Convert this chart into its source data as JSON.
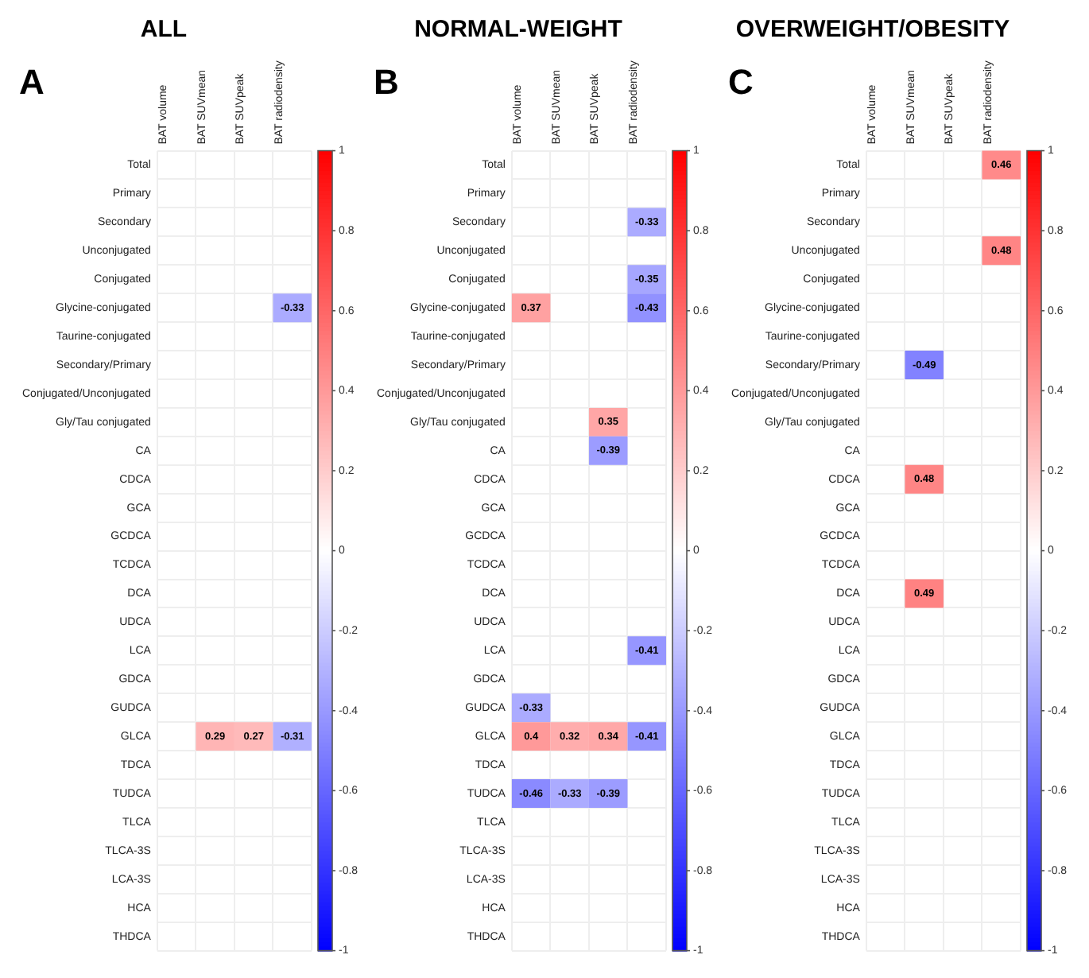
{
  "chart_data": [
    {
      "type": "heatmap",
      "title": "ALL",
      "annotations": [
        "A"
      ],
      "categories": [
        "BAT volume",
        "BAT SUVmean",
        "BAT SUVpeak",
        "BAT radiodensity"
      ],
      "y_categories": [
        "Total",
        "Primary",
        "Secondary",
        "Unconjugated",
        "Conjugated",
        "Glycine-conjugated",
        "Taurine-conjugated",
        "Secondary/Primary",
        "Conjugated/Unconjugated",
        "Gly/Tau conjugated",
        "CA",
        "CDCA",
        "GCA",
        "GCDCA",
        "TCDCA",
        "DCA",
        "UDCA",
        "LCA",
        "GDCA",
        "GUDCA",
        "GLCA",
        "TDCA",
        "TUDCA",
        "TLCA",
        "TLCA-3S",
        "LCA-3S",
        "HCA",
        "THDCA"
      ],
      "cells": [
        [
          null,
          null,
          null,
          null
        ],
        [
          null,
          null,
          null,
          null
        ],
        [
          null,
          null,
          null,
          null
        ],
        [
          null,
          null,
          null,
          null
        ],
        [
          null,
          null,
          null,
          null
        ],
        [
          null,
          null,
          null,
          -0.33
        ],
        [
          null,
          null,
          null,
          null
        ],
        [
          null,
          null,
          null,
          null
        ],
        [
          null,
          null,
          null,
          null
        ],
        [
          null,
          null,
          null,
          null
        ],
        [
          null,
          null,
          null,
          null
        ],
        [
          null,
          null,
          null,
          null
        ],
        [
          null,
          null,
          null,
          null
        ],
        [
          null,
          null,
          null,
          null
        ],
        [
          null,
          null,
          null,
          null
        ],
        [
          null,
          null,
          null,
          null
        ],
        [
          null,
          null,
          null,
          null
        ],
        [
          null,
          null,
          null,
          null
        ],
        [
          null,
          null,
          null,
          null
        ],
        [
          null,
          null,
          null,
          null
        ],
        [
          null,
          0.29,
          0.27,
          -0.31
        ],
        [
          null,
          null,
          null,
          null
        ],
        [
          null,
          null,
          null,
          null
        ],
        [
          null,
          null,
          null,
          null
        ],
        [
          null,
          null,
          null,
          null
        ],
        [
          null,
          null,
          null,
          null
        ],
        [
          null,
          null,
          null,
          null
        ],
        [
          null,
          null,
          null,
          null
        ]
      ],
      "clim": [
        -1,
        1
      ],
      "cticks": [
        -1,
        -0.8,
        -0.6,
        -0.4,
        -0.2,
        0,
        0.2,
        0.4,
        0.6,
        0.8,
        1
      ],
      "data_labels": true,
      "grid": true
    },
    {
      "type": "heatmap",
      "title": "NORMAL-WEIGHT",
      "annotations": [
        "B"
      ],
      "categories": [
        "BAT volume",
        "BAT SUVmean",
        "BAT SUVpeak",
        "BAT radiodensity"
      ],
      "y_categories": [
        "Total",
        "Primary",
        "Secondary",
        "Unconjugated",
        "Conjugated",
        "Glycine-conjugated",
        "Taurine-conjugated",
        "Secondary/Primary",
        "Conjugated/Unconjugated",
        "Gly/Tau conjugated",
        "CA",
        "CDCA",
        "GCA",
        "GCDCA",
        "TCDCA",
        "DCA",
        "UDCA",
        "LCA",
        "GDCA",
        "GUDCA",
        "GLCA",
        "TDCA",
        "TUDCA",
        "TLCA",
        "TLCA-3S",
        "LCA-3S",
        "HCA",
        "THDCA"
      ],
      "cells": [
        [
          null,
          null,
          null,
          null
        ],
        [
          null,
          null,
          null,
          null
        ],
        [
          null,
          null,
          null,
          -0.33
        ],
        [
          null,
          null,
          null,
          null
        ],
        [
          null,
          null,
          null,
          -0.35
        ],
        [
          0.37,
          null,
          null,
          -0.43
        ],
        [
          null,
          null,
          null,
          null
        ],
        [
          null,
          null,
          null,
          null
        ],
        [
          null,
          null,
          null,
          null
        ],
        [
          null,
          null,
          0.35,
          null
        ],
        [
          null,
          null,
          -0.39,
          null
        ],
        [
          null,
          null,
          null,
          null
        ],
        [
          null,
          null,
          null,
          null
        ],
        [
          null,
          null,
          null,
          null
        ],
        [
          null,
          null,
          null,
          null
        ],
        [
          null,
          null,
          null,
          null
        ],
        [
          null,
          null,
          null,
          null
        ],
        [
          null,
          null,
          null,
          -0.41
        ],
        [
          null,
          null,
          null,
          null
        ],
        [
          -0.33,
          null,
          null,
          null
        ],
        [
          0.4,
          0.32,
          0.34,
          -0.41
        ],
        [
          null,
          null,
          null,
          null
        ],
        [
          -0.46,
          -0.33,
          -0.39,
          null
        ],
        [
          null,
          null,
          null,
          null
        ],
        [
          null,
          null,
          null,
          null
        ],
        [
          null,
          null,
          null,
          null
        ],
        [
          null,
          null,
          null,
          null
        ],
        [
          null,
          null,
          null,
          null
        ]
      ],
      "clim": [
        -1,
        1
      ],
      "cticks": [
        -1,
        -0.8,
        -0.6,
        -0.4,
        -0.2,
        0,
        0.2,
        0.4,
        0.6,
        0.8,
        1
      ],
      "data_labels": true,
      "grid": true
    },
    {
      "type": "heatmap",
      "title": "OVERWEIGHT/OBESITY",
      "annotations": [
        "C"
      ],
      "categories": [
        "BAT volume",
        "BAT SUVmean",
        "BAT SUVpeak",
        "BAT radiodensity"
      ],
      "y_categories": [
        "Total",
        "Primary",
        "Secondary",
        "Unconjugated",
        "Conjugated",
        "Glycine-conjugated",
        "Taurine-conjugated",
        "Secondary/Primary",
        "Conjugated/Unconjugated",
        "Gly/Tau conjugated",
        "CA",
        "CDCA",
        "GCA",
        "GCDCA",
        "TCDCA",
        "DCA",
        "UDCA",
        "LCA",
        "GDCA",
        "GUDCA",
        "GLCA",
        "TDCA",
        "TUDCA",
        "TLCA",
        "TLCA-3S",
        "LCA-3S",
        "HCA",
        "THDCA"
      ],
      "cells": [
        [
          null,
          null,
          null,
          0.46
        ],
        [
          null,
          null,
          null,
          null
        ],
        [
          null,
          null,
          null,
          null
        ],
        [
          null,
          null,
          null,
          0.48
        ],
        [
          null,
          null,
          null,
          null
        ],
        [
          null,
          null,
          null,
          null
        ],
        [
          null,
          null,
          null,
          null
        ],
        [
          null,
          -0.49,
          null,
          null
        ],
        [
          null,
          null,
          null,
          null
        ],
        [
          null,
          null,
          null,
          null
        ],
        [
          null,
          null,
          null,
          null
        ],
        [
          null,
          0.48,
          null,
          null
        ],
        [
          null,
          null,
          null,
          null
        ],
        [
          null,
          null,
          null,
          null
        ],
        [
          null,
          null,
          null,
          null
        ],
        [
          null,
          0.49,
          null,
          null
        ],
        [
          null,
          null,
          null,
          null
        ],
        [
          null,
          null,
          null,
          null
        ],
        [
          null,
          null,
          null,
          null
        ],
        [
          null,
          null,
          null,
          null
        ],
        [
          null,
          null,
          null,
          null
        ],
        [
          null,
          null,
          null,
          null
        ],
        [
          null,
          null,
          null,
          null
        ],
        [
          null,
          null,
          null,
          null
        ],
        [
          null,
          null,
          null,
          null
        ],
        [
          null,
          null,
          null,
          null
        ],
        [
          null,
          null,
          null,
          null
        ],
        [
          null,
          null,
          null,
          null
        ]
      ],
      "clim": [
        -1,
        1
      ],
      "cticks": [
        -1,
        -0.8,
        -0.6,
        -0.4,
        -0.2,
        0,
        0.2,
        0.4,
        0.6,
        0.8,
        1
      ],
      "data_labels": true,
      "grid": true
    }
  ]
}
